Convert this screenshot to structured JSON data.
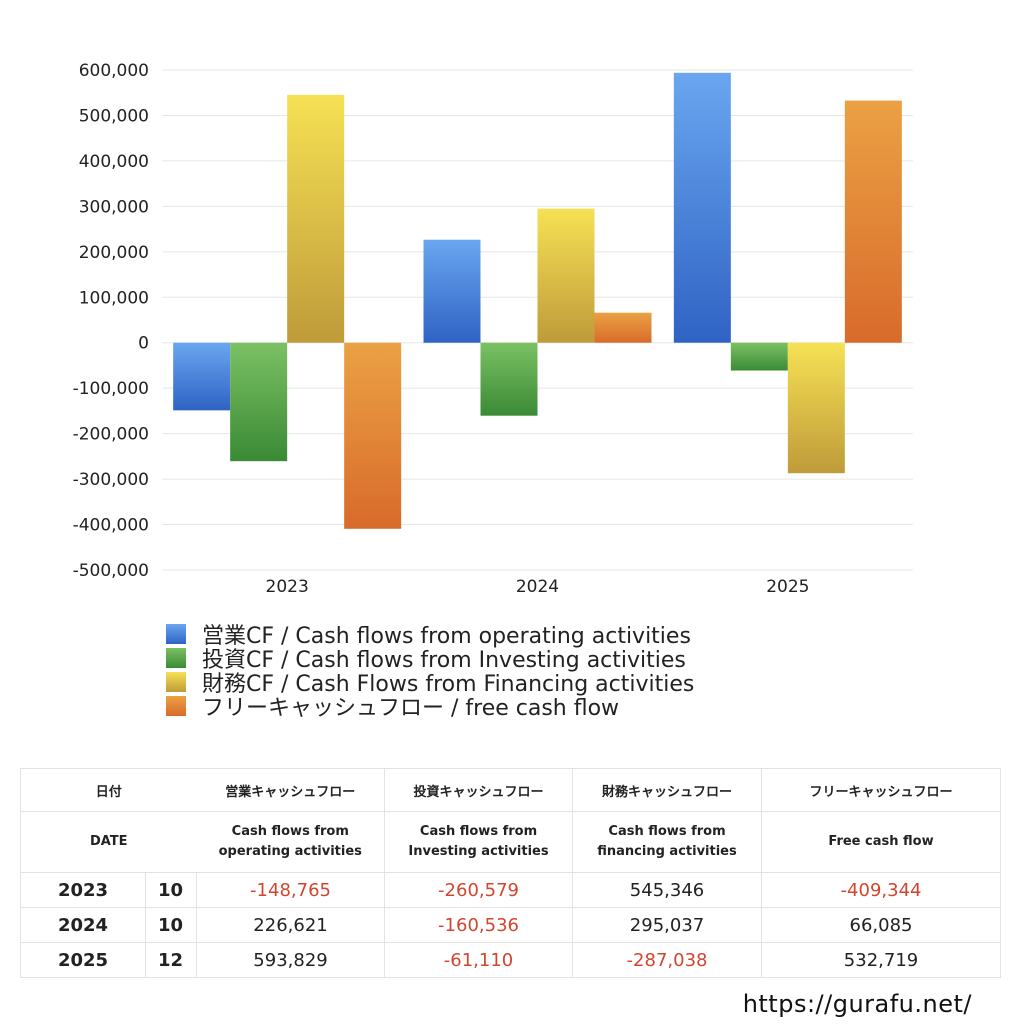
{
  "chart_data": {
    "type": "bar",
    "categories": [
      "2023",
      "2024",
      "2025"
    ],
    "series": [
      {
        "name": "営業CF / Cash flows from operating activities",
        "values": [
          -148765,
          226621,
          593829
        ],
        "color_top": "#6aa6f0",
        "color_bottom": "#2f63c4"
      },
      {
        "name": "投資CF / Cash flows from Investing activities",
        "values": [
          -260579,
          -160536,
          -61110
        ],
        "color_top": "#7cc164",
        "color_bottom": "#3a8a35"
      },
      {
        "name": "財務CF / Cash Flows from Financing activities",
        "values": [
          545346,
          295037,
          -287038
        ],
        "color_top": "#f6e154",
        "color_bottom": "#bf9b3a"
      },
      {
        "name": "フリーキャッシュフロー / free cash flow",
        "values": [
          -409344,
          66085,
          532719
        ],
        "color_top": "#eba144",
        "color_bottom": "#d86b2b"
      }
    ],
    "ylim": [
      -500000,
      600000
    ],
    "yticks": [
      600000,
      500000,
      400000,
      300000,
      200000,
      100000,
      0,
      -100000,
      -200000,
      -300000,
      -400000,
      -500000
    ],
    "ytick_labels": [
      "600,000",
      "500,000",
      "400,000",
      "300,000",
      "200,000",
      "100,000",
      "0",
      "-100,000",
      "-200,000",
      "-300,000",
      "-400,000",
      "-500,000"
    ],
    "grid": true,
    "legend_position": "bottom-left",
    "title": "",
    "xlabel": "",
    "ylabel": ""
  },
  "table": {
    "header_jp": {
      "date": "日付",
      "operating": "営業キャッシュフロー",
      "investing": "投資キャッシュフロー",
      "financing": "財務キャッシュフロー",
      "free": "フリーキャッシュフロー"
    },
    "header_en": {
      "date": "DATE",
      "operating_1": "Cash flows from",
      "operating_2": "operating activities",
      "investing_1": "Cash flows from",
      "investing_2": "Investing activities",
      "financing_1": "Cash flows from",
      "financing_2": "financing activities",
      "free": "Free cash flow"
    },
    "rows": [
      {
        "year": "2023",
        "month": "10",
        "operating": "-148,765",
        "investing": "-260,579",
        "financing": "545,346",
        "free": "-409,344"
      },
      {
        "year": "2024",
        "month": "10",
        "operating": "226,621",
        "investing": "-160,536",
        "financing": "295,037",
        "free": "66,085"
      },
      {
        "year": "2025",
        "month": "12",
        "operating": "593,829",
        "investing": "-61,110",
        "financing": "-287,038",
        "free": "532,719"
      }
    ],
    "negative_color": "#d2452f"
  },
  "footer": {
    "url": "https://gurafu.net/"
  }
}
